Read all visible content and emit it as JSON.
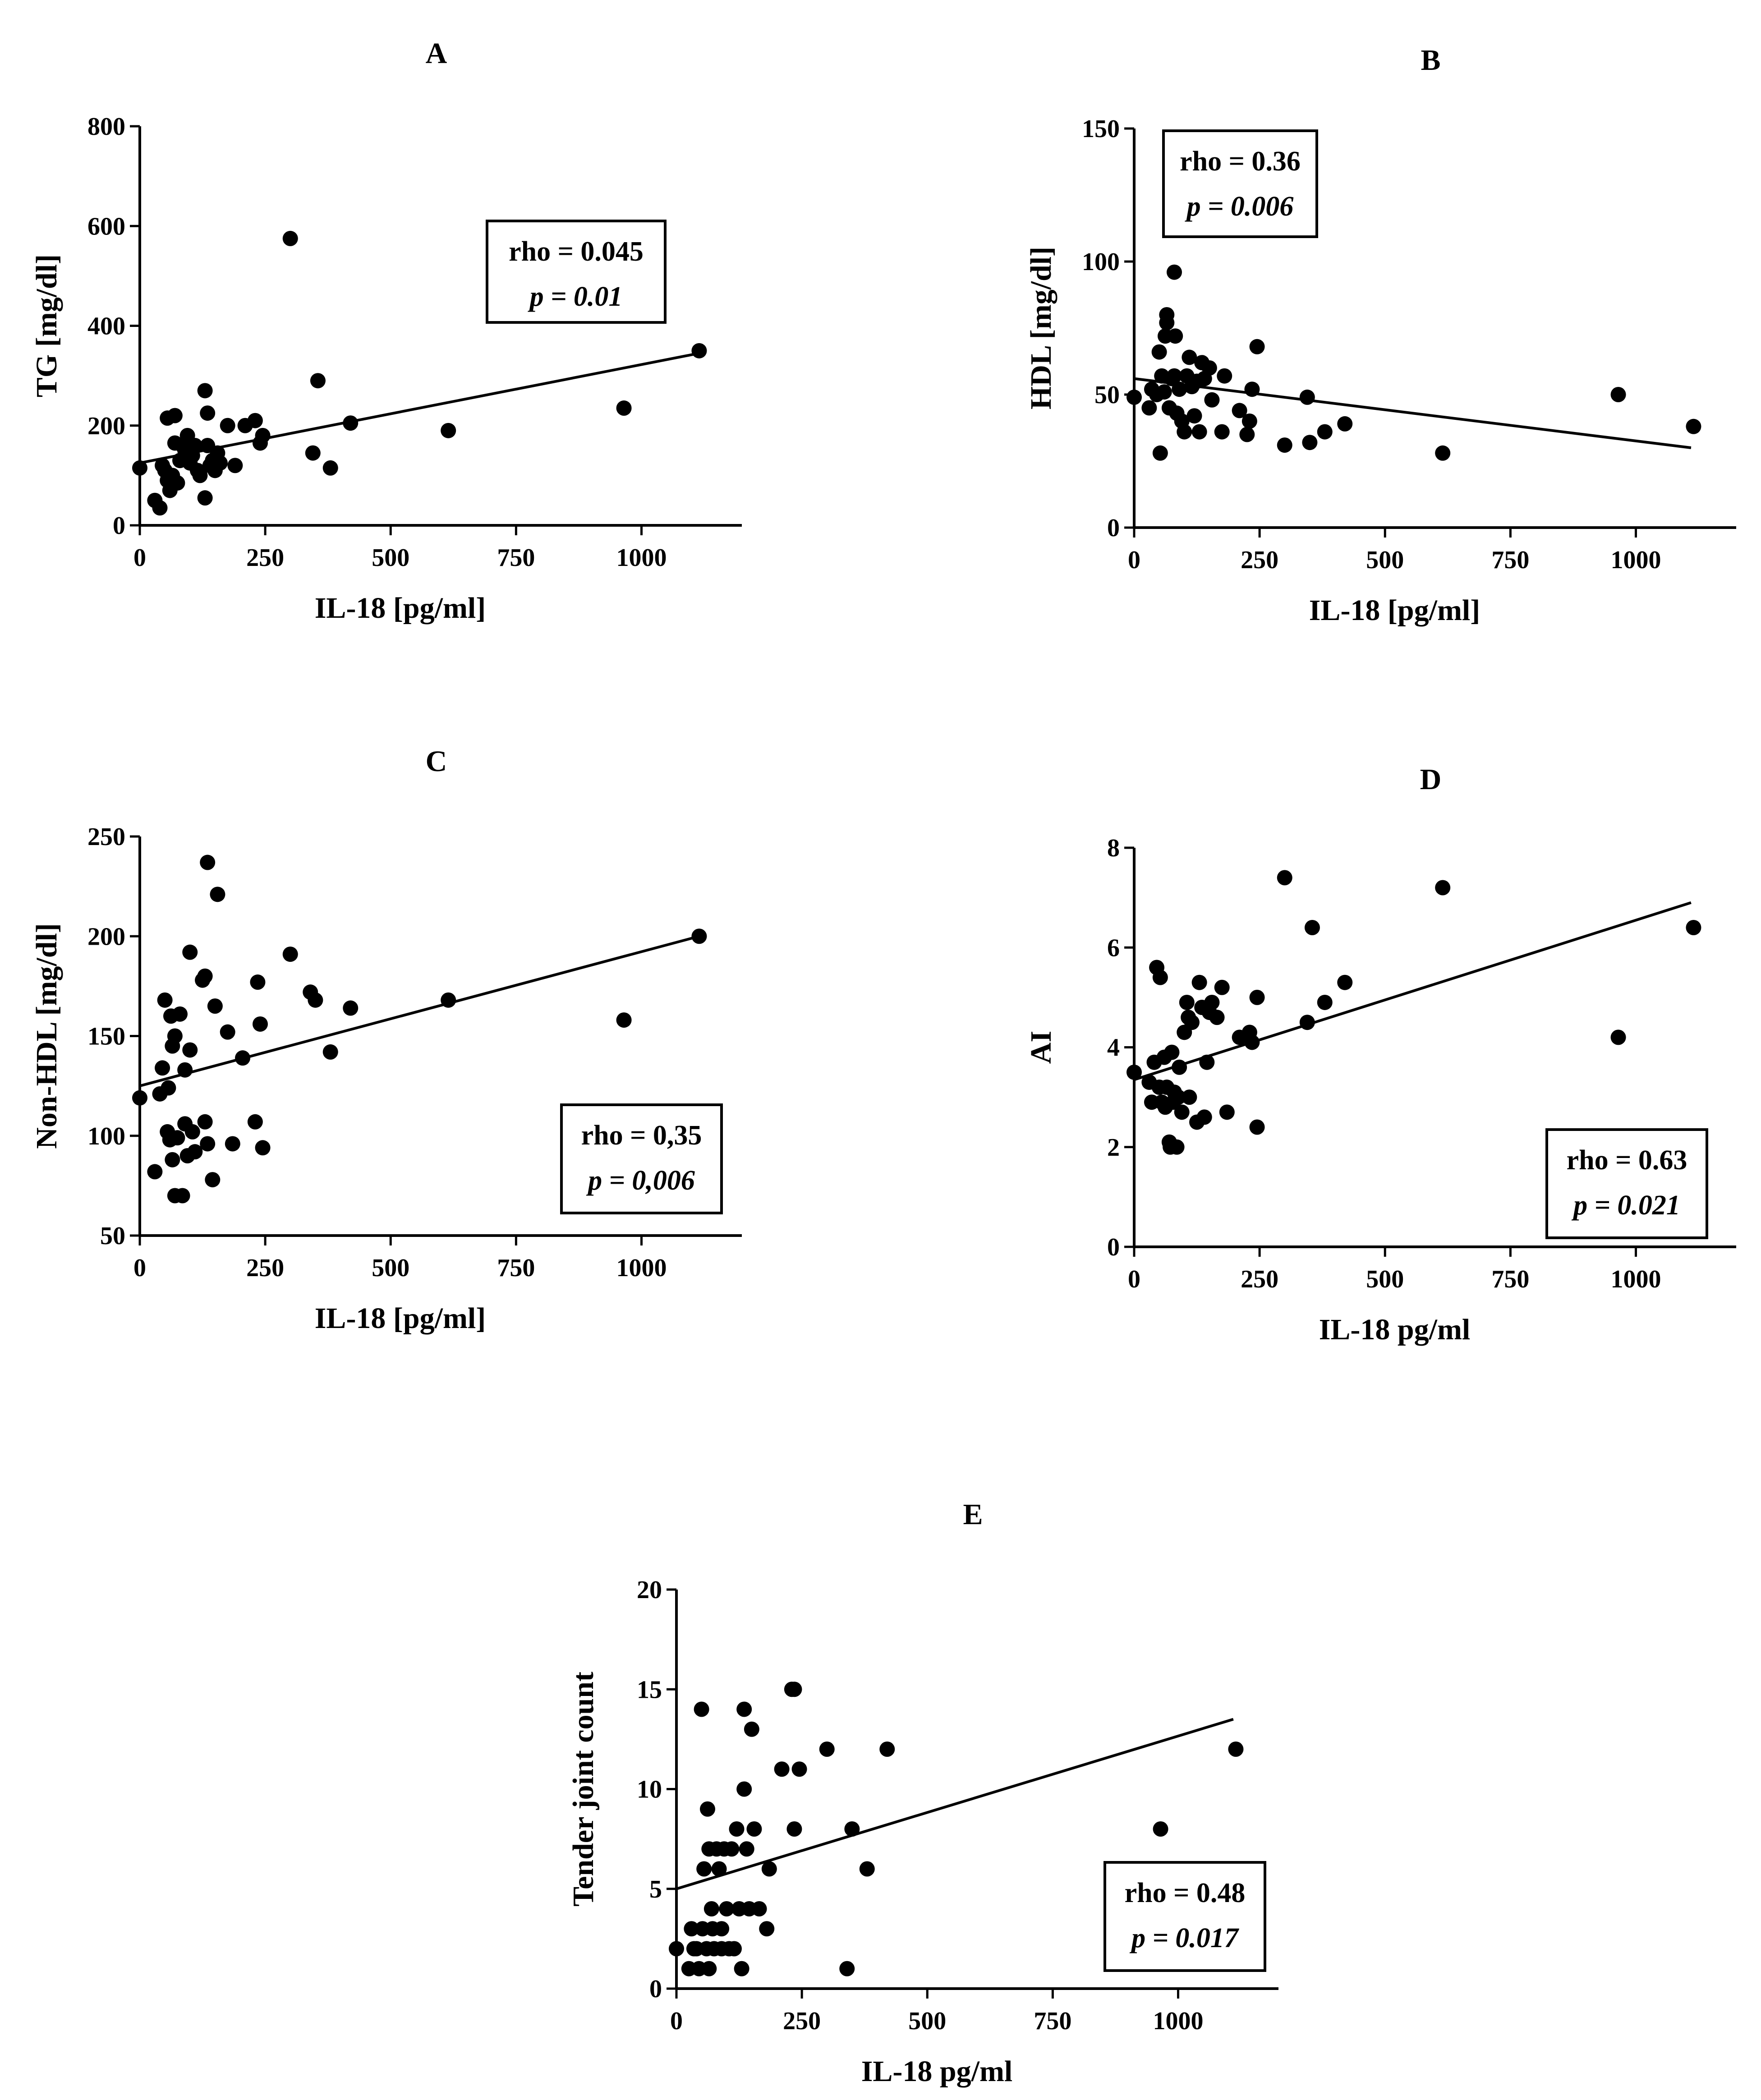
{
  "figure": {
    "colors": {
      "ink": "#000000",
      "background": "#ffffff"
    }
  },
  "chart_data": [
    {
      "panel": "A",
      "type": "scatter",
      "title": "A",
      "xlabel": "IL-18 [pg/ml]",
      "ylabel": "TG [mg/dl]",
      "xlim": [
        0,
        1200
      ],
      "ylim": [
        0,
        800
      ],
      "xticks": [
        0,
        250,
        500,
        750,
        1000
      ],
      "yticks": [
        0,
        200,
        400,
        600,
        800
      ],
      "stat_rho": "rho = 0.045",
      "stat_p": "p = 0.01",
      "stat_position": "right",
      "trend": {
        "x0": 0,
        "y0": 125,
        "x1": 1115,
        "y1": 345
      },
      "points": [
        [
          0,
          115
        ],
        [
          30,
          50
        ],
        [
          40,
          35
        ],
        [
          45,
          120
        ],
        [
          50,
          110
        ],
        [
          55,
          90
        ],
        [
          55,
          215
        ],
        [
          60,
          70
        ],
        [
          65,
          100
        ],
        [
          70,
          220
        ],
        [
          70,
          165
        ],
        [
          75,
          85
        ],
        [
          80,
          130
        ],
        [
          85,
          160
        ],
        [
          90,
          150
        ],
        [
          95,
          180
        ],
        [
          100,
          125
        ],
        [
          105,
          140
        ],
        [
          110,
          160
        ],
        [
          115,
          110
        ],
        [
          120,
          100
        ],
        [
          130,
          270
        ],
        [
          130,
          55
        ],
        [
          135,
          160
        ],
        [
          135,
          225
        ],
        [
          140,
          120
        ],
        [
          145,
          130
        ],
        [
          150,
          110
        ],
        [
          155,
          145
        ],
        [
          160,
          125
        ],
        [
          175,
          200
        ],
        [
          190,
          120
        ],
        [
          210,
          200
        ],
        [
          230,
          210
        ],
        [
          240,
          165
        ],
        [
          245,
          180
        ],
        [
          300,
          575
        ],
        [
          345,
          145
        ],
        [
          355,
          290
        ],
        [
          380,
          115
        ],
        [
          420,
          205
        ],
        [
          615,
          190
        ],
        [
          965,
          235
        ],
        [
          1115,
          350
        ]
      ]
    },
    {
      "panel": "B",
      "type": "scatter",
      "title": "B",
      "xlabel": "IL-18 [pg/ml]",
      "ylabel": "HDL [mg/dl]",
      "xlim": [
        0,
        1200
      ],
      "ylim": [
        0,
        150
      ],
      "xticks": [
        0,
        250,
        500,
        750,
        1000
      ],
      "yticks": [
        0,
        50,
        100,
        150
      ],
      "stat_rho": "rho = 0.36",
      "stat_p": "p = 0.006",
      "stat_position": "top-left",
      "trend": {
        "x0": 0,
        "y0": 56,
        "x1": 1110,
        "y1": 30
      },
      "points": [
        [
          0,
          49
        ],
        [
          30,
          45
        ],
        [
          35,
          52
        ],
        [
          45,
          50
        ],
        [
          50,
          66
        ],
        [
          52,
          28
        ],
        [
          55,
          57
        ],
        [
          60,
          51
        ],
        [
          62,
          72
        ],
        [
          65,
          77
        ],
        [
          65,
          80
        ],
        [
          70,
          45
        ],
        [
          75,
          56
        ],
        [
          80,
          57
        ],
        [
          80,
          96
        ],
        [
          82,
          72
        ],
        [
          85,
          43
        ],
        [
          90,
          52
        ],
        [
          95,
          40
        ],
        [
          100,
          36
        ],
        [
          105,
          57
        ],
        [
          110,
          64
        ],
        [
          115,
          53
        ],
        [
          120,
          42
        ],
        [
          125,
          55
        ],
        [
          130,
          36
        ],
        [
          135,
          62
        ],
        [
          140,
          56
        ],
        [
          150,
          60
        ],
        [
          155,
          48
        ],
        [
          175,
          36
        ],
        [
          180,
          57
        ],
        [
          210,
          44
        ],
        [
          225,
          35
        ],
        [
          230,
          40
        ],
        [
          235,
          52
        ],
        [
          245,
          68
        ],
        [
          300,
          31
        ],
        [
          345,
          49
        ],
        [
          350,
          32
        ],
        [
          380,
          36
        ],
        [
          420,
          39
        ],
        [
          615,
          28
        ],
        [
          965,
          50
        ],
        [
          1115,
          38
        ]
      ]
    },
    {
      "panel": "C",
      "type": "scatter",
      "title": "C",
      "xlabel": "IL-18 [pg/ml]",
      "ylabel": "Non-HDL [mg/dl]",
      "xlim": [
        0,
        1200
      ],
      "ylim": [
        50,
        250
      ],
      "xticks": [
        0,
        250,
        500,
        750,
        1000
      ],
      "yticks": [
        50,
        100,
        150,
        200,
        250
      ],
      "stat_rho": "rho = 0,35",
      "stat_p": "p = 0,006",
      "stat_position": "bottom-right",
      "trend": {
        "x0": 0,
        "y0": 125,
        "x1": 1115,
        "y1": 200
      },
      "points": [
        [
          0,
          119
        ],
        [
          30,
          82
        ],
        [
          40,
          121
        ],
        [
          45,
          134
        ],
        [
          50,
          168
        ],
        [
          55,
          102
        ],
        [
          57,
          124
        ],
        [
          60,
          98
        ],
        [
          62,
          160
        ],
        [
          65,
          145
        ],
        [
          65,
          88
        ],
        [
          70,
          150
        ],
        [
          70,
          70
        ],
        [
          75,
          99
        ],
        [
          80,
          161
        ],
        [
          85,
          70
        ],
        [
          90,
          133
        ],
        [
          90,
          106
        ],
        [
          95,
          90
        ],
        [
          100,
          192
        ],
        [
          100,
          143
        ],
        [
          105,
          102
        ],
        [
          110,
          92
        ],
        [
          125,
          178
        ],
        [
          130,
          180
        ],
        [
          130,
          107
        ],
        [
          135,
          237
        ],
        [
          135,
          96
        ],
        [
          145,
          78
        ],
        [
          150,
          165
        ],
        [
          155,
          221
        ],
        [
          175,
          152
        ],
        [
          185,
          96
        ],
        [
          205,
          139
        ],
        [
          230,
          107
        ],
        [
          235,
          177
        ],
        [
          240,
          156
        ],
        [
          245,
          94
        ],
        [
          300,
          191
        ],
        [
          340,
          172
        ],
        [
          350,
          168
        ],
        [
          380,
          142
        ],
        [
          420,
          164
        ],
        [
          615,
          168
        ],
        [
          965,
          158
        ],
        [
          1115,
          200
        ]
      ]
    },
    {
      "panel": "D",
      "type": "scatter",
      "title": "D",
      "xlabel": "IL-18 pg/ml",
      "ylabel": "AI",
      "xlim": [
        0,
        1200
      ],
      "ylim": [
        0,
        8
      ],
      "xticks": [
        0,
        250,
        500,
        750,
        1000
      ],
      "yticks": [
        0,
        2,
        4,
        6,
        8
      ],
      "stat_rho": "rho = 0.63",
      "stat_p": "p = 0.021",
      "stat_position": "bottom-right",
      "trend": {
        "x0": 0,
        "y0": 3.35,
        "x1": 1110,
        "y1": 6.9
      },
      "points": [
        [
          0,
          3.5
        ],
        [
          30,
          3.3
        ],
        [
          35,
          2.9
        ],
        [
          40,
          3.7
        ],
        [
          45,
          5.6
        ],
        [
          50,
          3.2
        ],
        [
          52,
          5.4
        ],
        [
          55,
          2.9
        ],
        [
          60,
          3.8
        ],
        [
          62,
          2.8
        ],
        [
          65,
          3.2
        ],
        [
          70,
          2.1
        ],
        [
          72,
          2.0
        ],
        [
          75,
          3.9
        ],
        [
          78,
          2.9
        ],
        [
          80,
          3.1
        ],
        [
          85,
          2.0
        ],
        [
          88,
          3.0
        ],
        [
          90,
          3.6
        ],
        [
          95,
          2.7
        ],
        [
          100,
          4.3
        ],
        [
          105,
          4.9
        ],
        [
          108,
          4.6
        ],
        [
          110,
          3.0
        ],
        [
          115,
          4.5
        ],
        [
          125,
          2.5
        ],
        [
          130,
          5.3
        ],
        [
          135,
          4.8
        ],
        [
          140,
          2.6
        ],
        [
          145,
          3.7
        ],
        [
          150,
          4.7
        ],
        [
          155,
          4.9
        ],
        [
          165,
          4.6
        ],
        [
          175,
          5.2
        ],
        [
          185,
          2.7
        ],
        [
          210,
          4.2
        ],
        [
          230,
          4.3
        ],
        [
          235,
          4.1
        ],
        [
          245,
          5.0
        ],
        [
          245,
          2.4
        ],
        [
          300,
          7.4
        ],
        [
          345,
          4.5
        ],
        [
          355,
          6.4
        ],
        [
          380,
          4.9
        ],
        [
          420,
          5.3
        ],
        [
          615,
          7.2
        ],
        [
          965,
          4.2
        ],
        [
          1115,
          6.4
        ]
      ]
    },
    {
      "panel": "E",
      "type": "scatter",
      "title": "E",
      "xlabel": "IL-18 pg/ml",
      "ylabel": "Tender joint count",
      "xlim": [
        0,
        1200
      ],
      "ylim": [
        0,
        20
      ],
      "xticks": [
        0,
        250,
        500,
        750,
        1000
      ],
      "yticks": [
        0,
        5,
        10,
        15,
        20
      ],
      "stat_rho": "rho = 0.48",
      "stat_p": "p = 0.017",
      "stat_position": "bottom-right",
      "trend": {
        "x0": 0,
        "y0": 5,
        "x1": 1110,
        "y1": 13.5
      },
      "points": [
        [
          0,
          2
        ],
        [
          25,
          1
        ],
        [
          30,
          3
        ],
        [
          35,
          2
        ],
        [
          40,
          2
        ],
        [
          45,
          1
        ],
        [
          50,
          14
        ],
        [
          52,
          3
        ],
        [
          55,
          6
        ],
        [
          60,
          2
        ],
        [
          62,
          9
        ],
        [
          65,
          7
        ],
        [
          65,
          1
        ],
        [
          70,
          4
        ],
        [
          72,
          3
        ],
        [
          75,
          2
        ],
        [
          80,
          7
        ],
        [
          85,
          6
        ],
        [
          90,
          3
        ],
        [
          90,
          2
        ],
        [
          95,
          7
        ],
        [
          100,
          4
        ],
        [
          105,
          2
        ],
        [
          110,
          7
        ],
        [
          115,
          2
        ],
        [
          120,
          8
        ],
        [
          125,
          4
        ],
        [
          130,
          1
        ],
        [
          135,
          10
        ],
        [
          135,
          14
        ],
        [
          140,
          7
        ],
        [
          145,
          4
        ],
        [
          150,
          13
        ],
        [
          155,
          8
        ],
        [
          165,
          4
        ],
        [
          180,
          3
        ],
        [
          185,
          6
        ],
        [
          210,
          11
        ],
        [
          230,
          15
        ],
        [
          235,
          15
        ],
        [
          235,
          8
        ],
        [
          245,
          11
        ],
        [
          300,
          12
        ],
        [
          340,
          1
        ],
        [
          350,
          8
        ],
        [
          380,
          6
        ],
        [
          420,
          12
        ],
        [
          965,
          8
        ],
        [
          1115,
          12
        ]
      ]
    }
  ]
}
